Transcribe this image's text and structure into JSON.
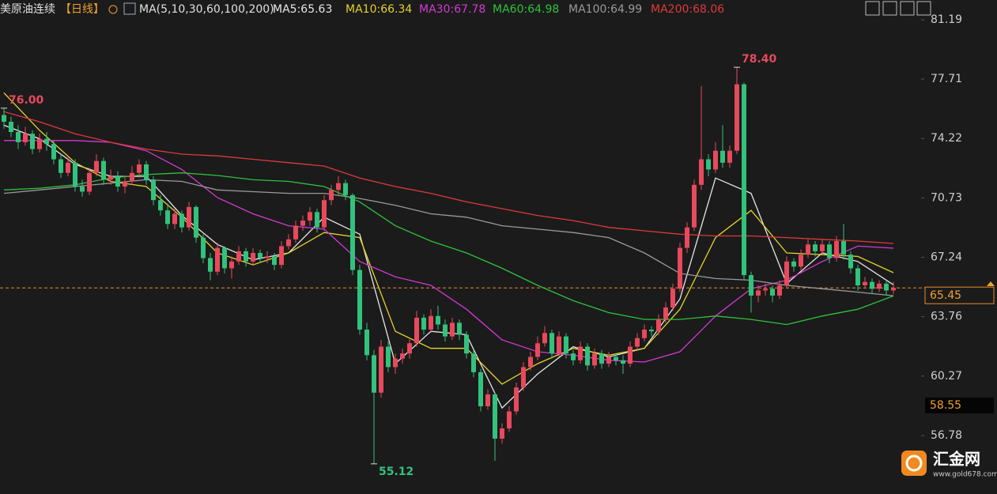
{
  "chart_data": {
    "type": "candlestick",
    "title": "美原油连续",
    "period": "【日线】",
    "indicator": "MA(5,10,30,60,100,200)",
    "up_color": "#e8495c",
    "down_color": "#33c27c",
    "ylim": [
      53.35,
      82.35
    ],
    "yticks": [
      81.19,
      77.71,
      74.22,
      70.73,
      67.24,
      63.76,
      60.27,
      56.78
    ],
    "current_price": 65.45,
    "marker_price": 58.55,
    "annotations": [
      {
        "value": 76.0,
        "label": "76.00",
        "color": "#e8495c"
      },
      {
        "value": 78.4,
        "label": "78.40",
        "color": "#e8495c"
      },
      {
        "value": 55.12,
        "color": "#33c27c"
      }
    ],
    "candles": [
      [
        75.6,
        76.0,
        74.8,
        75.2
      ],
      [
        75.2,
        75.5,
        74.3,
        74.6
      ],
      [
        74.6,
        75.0,
        73.6,
        74.0
      ],
      [
        74.0,
        74.9,
        73.8,
        74.5
      ],
      [
        74.5,
        74.7,
        73.3,
        73.6
      ],
      [
        73.6,
        74.5,
        73.4,
        74.2
      ],
      [
        74.2,
        74.6,
        73.5,
        73.9
      ],
      [
        73.9,
        74.1,
        72.7,
        73.0
      ],
      [
        73.0,
        73.3,
        71.9,
        72.2
      ],
      [
        72.2,
        73.1,
        72.0,
        72.8
      ],
      [
        72.8,
        73.0,
        71.1,
        71.4
      ],
      [
        71.4,
        71.8,
        70.8,
        71.1
      ],
      [
        71.1,
        72.5,
        70.9,
        72.2
      ],
      [
        72.2,
        73.3,
        72.0,
        72.9
      ],
      [
        72.9,
        73.1,
        71.5,
        71.8
      ],
      [
        71.8,
        72.4,
        71.5,
        72.0
      ],
      [
        72.0,
        72.3,
        71.1,
        71.4
      ],
      [
        71.4,
        72.0,
        71.0,
        71.7
      ],
      [
        71.7,
        72.6,
        71.5,
        72.2
      ],
      [
        72.2,
        73.0,
        71.9,
        72.7
      ],
      [
        72.7,
        72.9,
        71.5,
        71.8
      ],
      [
        71.8,
        72.0,
        70.3,
        70.6
      ],
      [
        70.6,
        70.9,
        69.7,
        70.0
      ],
      [
        70.0,
        70.4,
        68.9,
        69.2
      ],
      [
        69.2,
        70.1,
        68.9,
        69.8
      ],
      [
        69.8,
        70.0,
        68.7,
        69.0
      ],
      [
        69.0,
        70.5,
        68.8,
        70.2
      ],
      [
        70.2,
        70.3,
        68.1,
        68.4
      ],
      [
        68.4,
        68.6,
        66.9,
        67.2
      ],
      [
        67.2,
        67.5,
        65.9,
        66.4
      ],
      [
        66.4,
        68.1,
        66.2,
        67.8
      ],
      [
        67.8,
        67.9,
        66.3,
        66.6
      ],
      [
        66.6,
        67.3,
        66.0,
        67.0
      ],
      [
        67.0,
        67.9,
        66.8,
        67.6
      ],
      [
        67.6,
        67.8,
        66.7,
        67.0
      ],
      [
        67.0,
        67.8,
        66.8,
        67.5
      ],
      [
        67.5,
        67.7,
        66.9,
        67.2
      ],
      [
        67.2,
        67.6,
        66.9,
        67.3
      ],
      [
        67.3,
        67.5,
        66.5,
        66.8
      ],
      [
        66.8,
        68.2,
        66.6,
        67.9
      ],
      [
        67.9,
        68.6,
        67.7,
        68.3
      ],
      [
        68.3,
        69.4,
        68.1,
        69.1
      ],
      [
        69.1,
        69.7,
        68.8,
        69.4
      ],
      [
        69.4,
        70.2,
        69.1,
        69.9
      ],
      [
        69.9,
        70.1,
        68.7,
        69.0
      ],
      [
        69.0,
        70.9,
        68.8,
        70.6
      ],
      [
        70.6,
        71.5,
        70.3,
        71.2
      ],
      [
        71.2,
        72.0,
        70.9,
        71.6
      ],
      [
        71.6,
        71.8,
        70.6,
        70.9
      ],
      [
        70.9,
        71.0,
        66.2,
        66.5
      ],
      [
        66.5,
        66.8,
        62.7,
        63.0
      ],
      [
        63.0,
        63.4,
        61.2,
        61.5
      ],
      [
        61.5,
        61.8,
        55.12,
        59.3
      ],
      [
        59.3,
        62.4,
        59.0,
        62.0
      ],
      [
        62.0,
        62.3,
        60.5,
        60.8
      ],
      [
        60.8,
        61.6,
        60.4,
        61.3
      ],
      [
        61.3,
        61.9,
        61.0,
        61.6
      ],
      [
        61.6,
        62.5,
        61.3,
        62.2
      ],
      [
        62.2,
        64.1,
        62.0,
        63.7
      ],
      [
        63.7,
        63.9,
        62.7,
        63.0
      ],
      [
        63.0,
        64.2,
        62.8,
        63.8
      ],
      [
        63.8,
        64.4,
        63.0,
        63.3
      ],
      [
        63.3,
        63.6,
        62.3,
        62.6
      ],
      [
        62.6,
        63.7,
        62.4,
        63.4
      ],
      [
        63.4,
        63.6,
        62.4,
        62.7
      ],
      [
        62.7,
        62.9,
        61.3,
        61.6
      ],
      [
        61.6,
        61.8,
        60.2,
        60.5
      ],
      [
        60.5,
        60.7,
        58.2,
        58.5
      ],
      [
        58.5,
        59.5,
        58.3,
        59.2
      ],
      [
        59.2,
        59.3,
        55.3,
        56.6
      ],
      [
        56.6,
        57.5,
        56.3,
        57.2
      ],
      [
        57.2,
        58.5,
        57.0,
        58.2
      ],
      [
        58.2,
        59.9,
        58.0,
        59.6
      ],
      [
        59.6,
        61.1,
        59.4,
        60.8
      ],
      [
        60.8,
        61.7,
        60.6,
        61.4
      ],
      [
        61.4,
        62.6,
        61.2,
        62.2
      ],
      [
        62.2,
        63.2,
        62.0,
        62.8
      ],
      [
        62.8,
        63.0,
        61.3,
        61.6
      ],
      [
        61.6,
        62.9,
        61.4,
        62.6
      ],
      [
        62.6,
        62.8,
        61.3,
        61.6
      ],
      [
        61.6,
        61.8,
        60.9,
        61.2
      ],
      [
        61.2,
        62.3,
        61.0,
        62.0
      ],
      [
        62.0,
        62.2,
        60.6,
        60.9
      ],
      [
        60.9,
        61.9,
        60.7,
        61.6
      ],
      [
        61.6,
        61.8,
        60.7,
        61.0
      ],
      [
        61.0,
        61.7,
        60.8,
        61.4
      ],
      [
        61.4,
        61.6,
        60.9,
        61.2
      ],
      [
        61.2,
        61.5,
        60.4,
        61.0
      ],
      [
        61.0,
        62.3,
        60.8,
        62.0
      ],
      [
        62.0,
        62.8,
        61.8,
        62.5
      ],
      [
        62.5,
        63.3,
        62.3,
        63.0
      ],
      [
        63.0,
        63.2,
        62.6,
        62.9
      ],
      [
        62.9,
        63.9,
        62.7,
        63.6
      ],
      [
        63.6,
        64.6,
        63.4,
        64.3
      ],
      [
        64.3,
        65.7,
        64.1,
        65.4
      ],
      [
        65.4,
        68.1,
        65.2,
        67.8
      ],
      [
        67.8,
        69.3,
        67.5,
        69.0
      ],
      [
        69.0,
        71.8,
        68.8,
        71.5
      ],
      [
        71.5,
        77.3,
        71.2,
        73.0
      ],
      [
        73.0,
        73.3,
        72.0,
        72.4
      ],
      [
        72.4,
        74.0,
        72.2,
        73.5
      ],
      [
        73.5,
        75.0,
        72.5,
        72.8
      ],
      [
        72.8,
        73.8,
        72.5,
        73.5
      ],
      [
        73.5,
        78.4,
        73.3,
        77.4
      ],
      [
        77.4,
        77.5,
        65.9,
        66.2
      ],
      [
        66.2,
        66.4,
        64.0,
        65.0
      ],
      [
        65.0,
        65.6,
        64.6,
        65.3
      ],
      [
        65.3,
        65.7,
        65.0,
        65.4
      ],
      [
        65.4,
        65.6,
        64.6,
        65.0
      ],
      [
        65.0,
        65.9,
        64.8,
        65.6
      ],
      [
        65.6,
        67.3,
        65.4,
        67.0
      ],
      [
        67.0,
        67.2,
        66.4,
        66.7
      ],
      [
        66.7,
        67.7,
        66.5,
        67.4
      ],
      [
        67.4,
        68.3,
        67.2,
        68.0
      ],
      [
        68.0,
        68.2,
        67.3,
        67.6
      ],
      [
        67.6,
        68.3,
        67.4,
        68.0
      ],
      [
        68.0,
        68.2,
        66.9,
        67.2
      ],
      [
        67.2,
        68.5,
        67.0,
        68.2
      ],
      [
        68.2,
        69.2,
        67.1,
        67.4
      ],
      [
        67.4,
        67.6,
        66.3,
        66.6
      ],
      [
        66.6,
        66.8,
        65.3,
        65.6
      ],
      [
        65.6,
        66.1,
        65.4,
        65.8
      ],
      [
        65.8,
        66.0,
        65.1,
        65.4
      ],
      [
        65.4,
        65.9,
        65.2,
        65.7
      ],
      [
        65.7,
        65.9,
        65.0,
        65.3
      ],
      [
        65.3,
        65.8,
        65.1,
        65.45
      ]
    ],
    "ma_x": [
      0,
      5,
      10,
      15,
      20,
      25,
      30,
      35,
      40,
      45,
      50,
      55,
      60,
      65,
      70,
      75,
      80,
      85,
      90,
      95,
      100,
      105,
      110,
      115,
      120,
      125
    ],
    "series": [
      {
        "name": "MA5:65.63",
        "color": "#e6e6e6",
        "values": [
          75.0,
          74.2,
          72.7,
          72.0,
          72.0,
          69.7,
          68.0,
          67.1,
          67.5,
          69.6,
          68.6,
          61.0,
          62.9,
          62.7,
          58.4,
          60.4,
          62.0,
          61.4,
          61.9,
          64.8,
          71.9,
          71.0,
          65.7,
          67.5,
          67.0,
          65.63
        ]
      },
      {
        "name": "MA10:66.34",
        "color": "#e3d22a",
        "values": [
          76.9,
          74.7,
          72.8,
          71.7,
          71.4,
          69.6,
          67.5,
          66.8,
          67.5,
          68.7,
          68.4,
          62.9,
          61.9,
          61.9,
          59.8,
          61.0,
          61.9,
          61.5,
          61.9,
          64.2,
          68.4,
          70.0,
          67.5,
          67.4,
          67.3,
          66.34
        ]
      },
      {
        "name": "MA30:67.78",
        "color": "#d23ad2",
        "values": [
          74.1,
          74.1,
          74.1,
          74.0,
          73.5,
          72.4,
          70.75,
          69.8,
          69.1,
          68.9,
          67.0,
          66.1,
          65.6,
          64.2,
          62.4,
          61.7,
          61.5,
          61.2,
          61.1,
          61.7,
          63.8,
          65.4,
          65.9,
          67.0,
          67.9,
          67.78
        ]
      },
      {
        "name": "MA60:64.98",
        "color": "#2fc23a",
        "values": [
          71.2,
          71.3,
          71.5,
          71.9,
          72.1,
          72.2,
          72.05,
          71.8,
          71.7,
          71.4,
          70.5,
          69.1,
          68.2,
          67.5,
          66.6,
          65.6,
          64.7,
          64.0,
          63.6,
          63.6,
          63.8,
          63.6,
          63.3,
          63.8,
          64.2,
          64.98
        ]
      },
      {
        "name": "MA100:64.99",
        "color": "#9a9a9a",
        "values": [
          71.0,
          71.2,
          71.4,
          71.6,
          71.8,
          71.7,
          71.2,
          71.1,
          71.0,
          71.0,
          70.7,
          70.3,
          69.8,
          69.6,
          69.1,
          68.9,
          68.7,
          68.4,
          67.5,
          66.3,
          66.0,
          65.9,
          65.6,
          65.4,
          65.2,
          64.99
        ]
      },
      {
        "name": "MA200:68.06",
        "color": "#e0393b",
        "values": [
          75.8,
          75.2,
          74.5,
          74.0,
          73.6,
          73.3,
          73.2,
          73.0,
          72.8,
          72.6,
          71.9,
          71.4,
          71.0,
          70.5,
          70.1,
          69.7,
          69.4,
          69.0,
          68.8,
          68.6,
          68.5,
          68.5,
          68.4,
          68.3,
          68.2,
          68.06
        ]
      }
    ]
  },
  "watermark": {
    "brand": "汇金网",
    "url": "www.gold678.com"
  }
}
